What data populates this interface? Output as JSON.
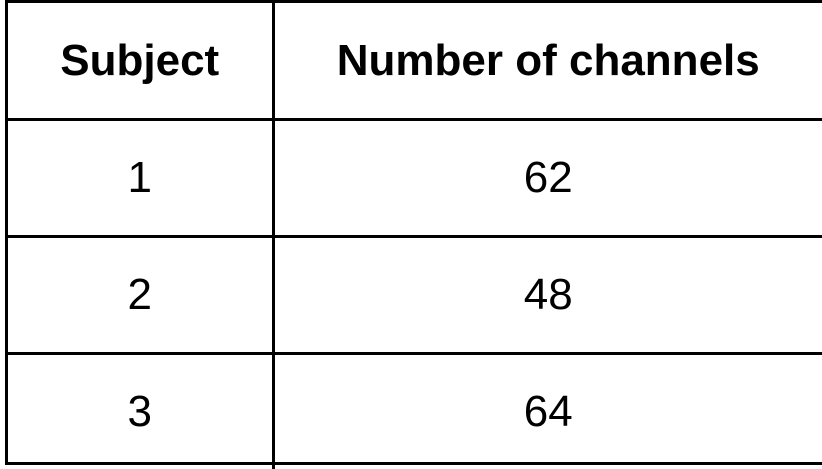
{
  "table": {
    "headers": [
      "Subject",
      "Number of channels"
    ],
    "rows": [
      [
        "1",
        "62"
      ],
      [
        "2",
        "48"
      ],
      [
        "3",
        "64"
      ]
    ]
  }
}
